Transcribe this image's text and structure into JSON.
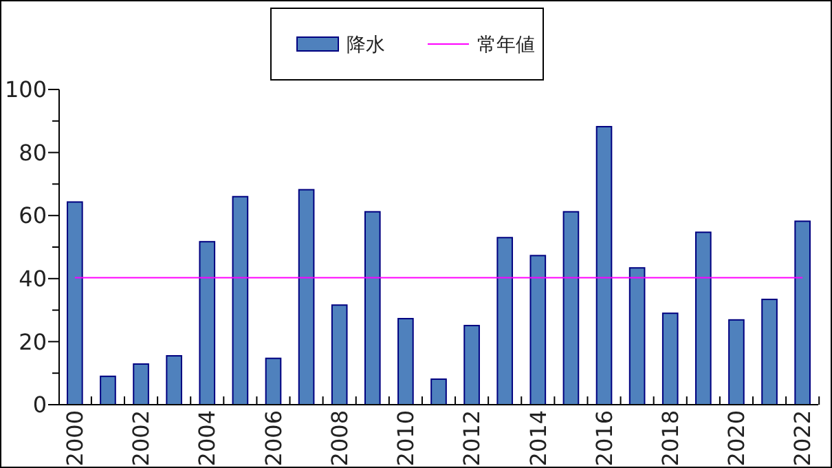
{
  "chart_data": {
    "type": "bar",
    "categories": [
      "2000",
      null,
      "2002",
      null,
      "2004",
      null,
      "2006",
      null,
      "2008",
      null,
      "2010",
      null,
      "2012",
      null,
      "2014",
      null,
      "2016",
      null,
      "2018",
      null,
      "2020",
      null,
      "2022"
    ],
    "series": [
      {
        "name": "降水",
        "color": "#4f81bd",
        "values": [
          64.3,
          9.0,
          12.9,
          15.5,
          51.7,
          66.0,
          14.7,
          68.2,
          31.6,
          61.2,
          27.3,
          8.1,
          25.1,
          53.0,
          47.3,
          61.2,
          88.2,
          43.4,
          29.0,
          54.7,
          26.9,
          33.4,
          58.2
        ]
      }
    ],
    "ref_lines": [
      {
        "axis": "y",
        "value": 40.3,
        "label": "常年値",
        "color": "#ff00ff"
      }
    ],
    "ylim": [
      0,
      100
    ],
    "yticks": [
      0,
      {
        "value": 10,
        "label": null
      },
      20,
      {
        "value": 30,
        "label": null
      },
      40,
      {
        "value": 50,
        "label": null
      },
      60,
      {
        "value": 70,
        "label": null
      },
      80,
      {
        "value": 90,
        "label": null
      },
      100
    ],
    "legend": "top",
    "grid": false
  }
}
